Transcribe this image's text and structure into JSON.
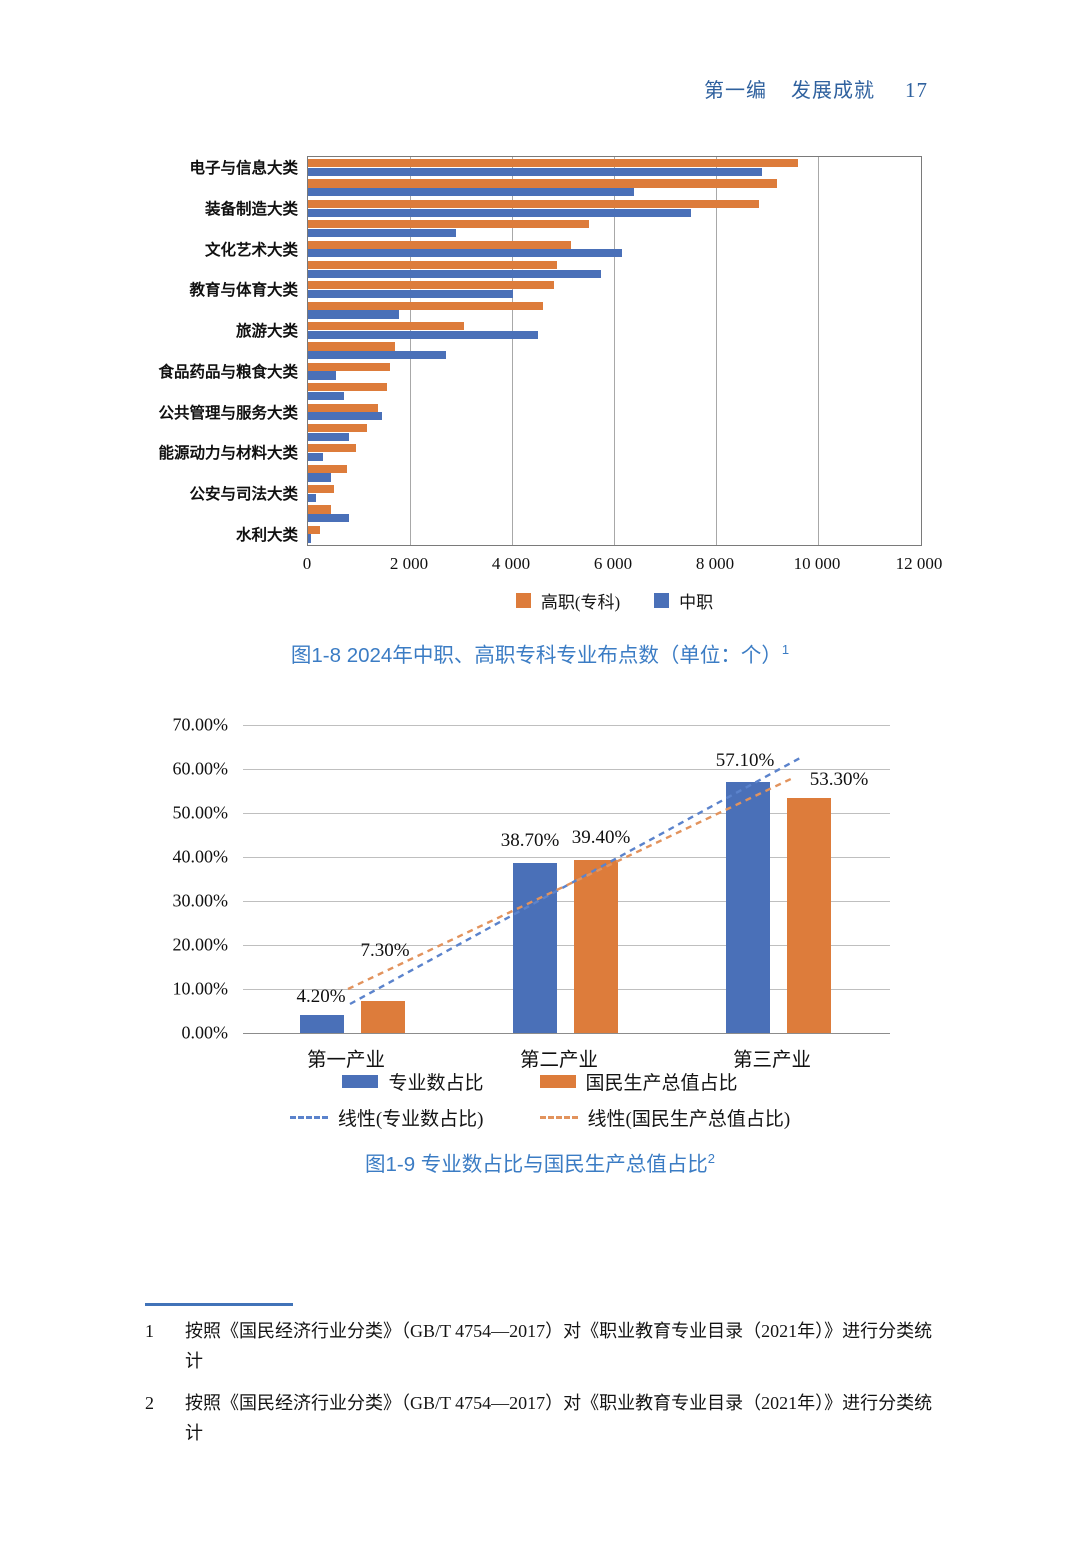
{
  "header": {
    "section": "第一编",
    "title": "发展成就",
    "page_number": "17"
  },
  "chart_data": [
    {
      "id": "fig1-8",
      "type": "bar",
      "orientation": "horizontal",
      "title": "图1-8 2024年中职、高职专科专业布点数（单位：个）",
      "title_superscript": "1",
      "categories": [
        "电子与信息大类",
        "",
        "装备制造大类",
        "",
        "文化艺术大类",
        "",
        "教育与体育大类",
        "",
        "旅游大类",
        "",
        "食品药品与粮食大类",
        "",
        "公共管理与服务大类",
        "",
        "能源动力与材料大类",
        "",
        "公安与司法大类",
        "",
        "水利大类"
      ],
      "series": [
        {
          "name": "高职(专科)",
          "color": "#DD7C3B",
          "values": [
            9600,
            9200,
            8850,
            5500,
            5150,
            4880,
            4820,
            4600,
            3050,
            1700,
            1600,
            1550,
            1380,
            1150,
            950,
            770,
            500,
            460,
            240
          ]
        },
        {
          "name": "中职",
          "color": "#4A70B8",
          "values": [
            8900,
            6400,
            7500,
            2900,
            6150,
            5750,
            4020,
            1780,
            4500,
            2700,
            550,
            700,
            1450,
            800,
            300,
            450,
            160,
            800,
            60
          ]
        }
      ],
      "xlim": [
        0,
        12000
      ],
      "x_ticks": [
        "0",
        "2 000",
        "4 000",
        "6 000",
        "8 000",
        "10 000",
        "12 000"
      ],
      "grid": "vertical",
      "legend_position": "bottom"
    },
    {
      "id": "fig1-9",
      "type": "bar",
      "orientation": "vertical",
      "title": "图1-9 专业数占比与国民生产总值占比",
      "title_superscript": "2",
      "categories": [
        "第一产业",
        "第二产业",
        "第三产业"
      ],
      "series": [
        {
          "name": "专业数占比",
          "color": "#4A70B8",
          "values": [
            4.2,
            38.7,
            57.1
          ],
          "data_labels": [
            "4.20%",
            "38.70%",
            "57.10%"
          ]
        },
        {
          "name": "国民生产总值占比",
          "color": "#DD7C3B",
          "values": [
            7.3,
            39.4,
            53.3
          ],
          "data_labels": [
            "7.30%",
            "39.40%",
            "53.30%"
          ]
        }
      ],
      "trendlines": [
        {
          "name": "线性(专业数占比)",
          "color": "#5B83CC",
          "style": "dashed"
        },
        {
          "name": "线性(国民生产总值占比)",
          "color": "#E2935D",
          "style": "dashed"
        }
      ],
      "ylim": [
        0,
        70
      ],
      "y_ticks": [
        "0.00%",
        "10.00%",
        "20.00%",
        "30.00%",
        "40.00%",
        "50.00%",
        "60.00%",
        "70.00%"
      ],
      "grid": "horizontal",
      "legend_position": "bottom"
    }
  ],
  "footnotes": {
    "items": [
      {
        "num": "1",
        "text": "按照《国民经济行业分类》（GB/T 4754—2017）对《职业教育专业目录（2021年）》进行分类统计"
      },
      {
        "num": "2",
        "text": "按照《国民经济行业分类》（GB/T 4754—2017）对《职业教育专业目录（2021年）》进行分类统计"
      }
    ]
  },
  "colors": {
    "accent_blue": "#4A70B8",
    "accent_orange": "#DD7C3B",
    "caption_blue": "#3B7CC4",
    "header_blue": "#2F619E",
    "grid_gray": "#A8A8A8",
    "axis_gray": "#8C8C8C"
  }
}
